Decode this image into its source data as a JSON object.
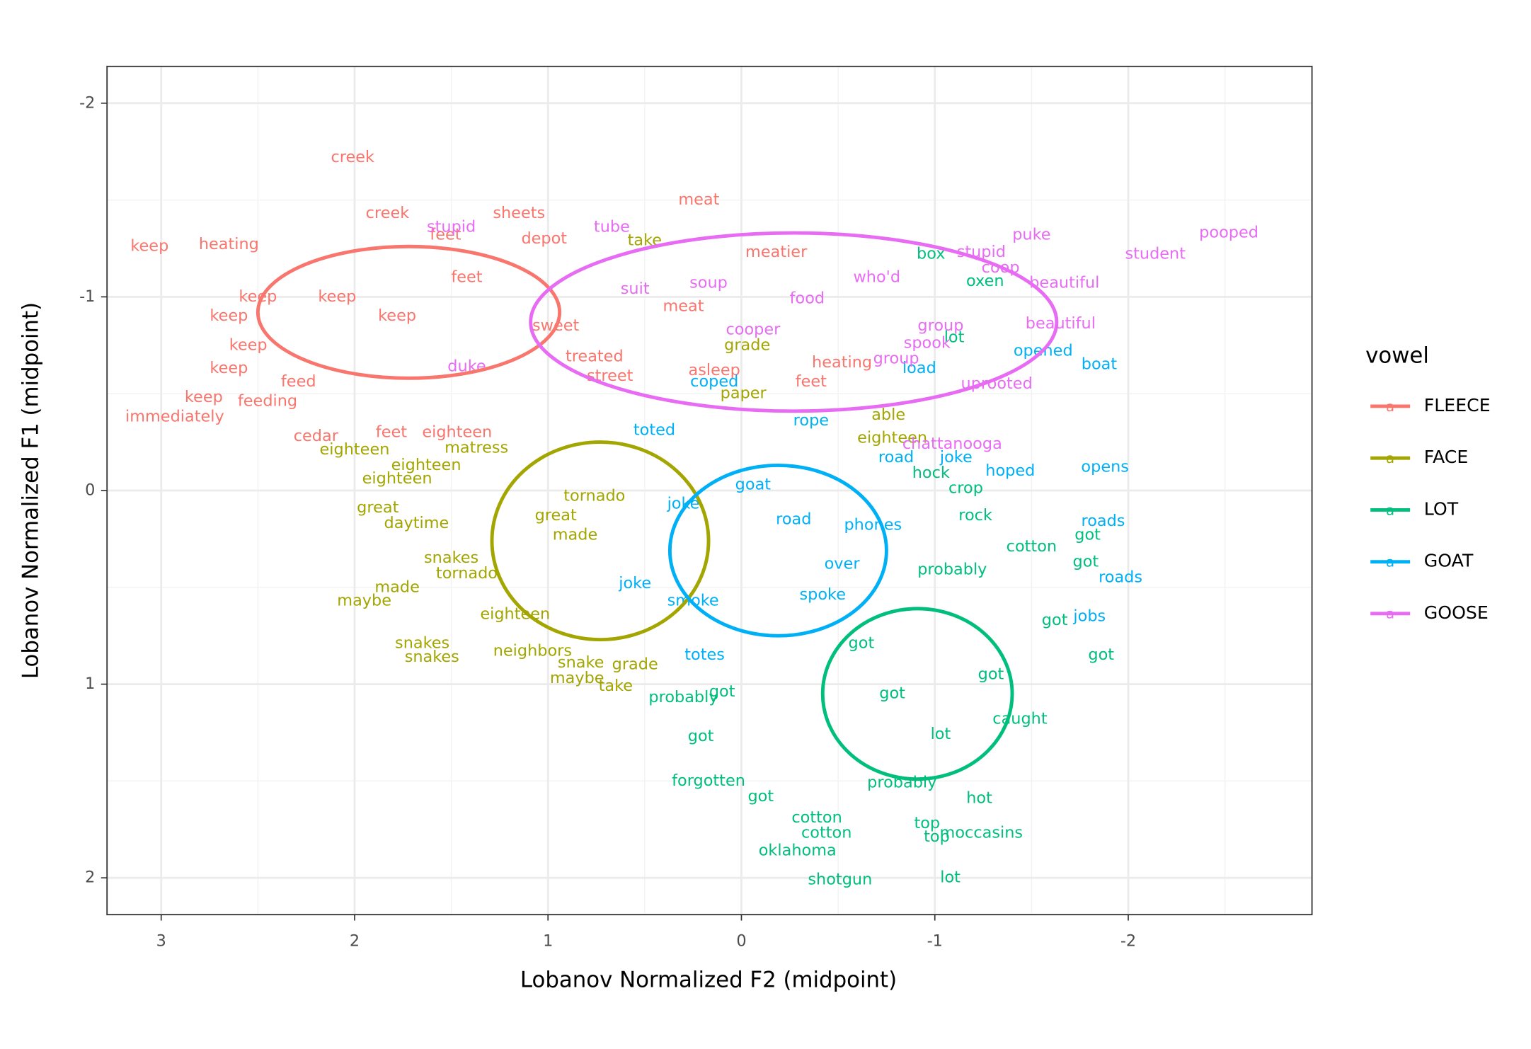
{
  "chart_data": {
    "type": "text-scatter",
    "x_label": "Lobanov Normalized F2 (midpoint)",
    "y_label": "Lobanov Normalized F1 (midpoint)",
    "legend_title": "vowel",
    "legend_glyph": "a",
    "legend_position": "right",
    "grid": true,
    "xlim": [
      3.28,
      -2.95
    ],
    "ylim": [
      2.19,
      -2.19
    ],
    "xticks": [
      3,
      2,
      1,
      0,
      -1,
      -2
    ],
    "yticks": [
      2,
      1,
      0,
      -1,
      -2
    ],
    "series": [
      {
        "name": "FLEECE",
        "color": "#F8766D",
        "ellipse": {
          "cx": 1.72,
          "cy": -0.92,
          "rx": 0.78,
          "ry": 0.34
        },
        "labels": [
          "creek",
          "creek",
          "sheets",
          "meat",
          "feet",
          "depot",
          "keep",
          "heating",
          "meatier",
          "immediately",
          "keep",
          "cedar",
          "feet",
          "eighteen",
          "feeding",
          "feet",
          "asleep",
          "heating",
          "treated",
          "keep",
          "keep",
          "keep",
          "keep",
          "meat",
          "keep",
          "feed",
          "street",
          "keep",
          "feet",
          "sweet"
        ],
        "x": [
          2.01,
          1.83,
          1.15,
          0.22,
          1.53,
          1.02,
          3.06,
          2.65,
          -0.18,
          2.93,
          2.78,
          2.2,
          1.81,
          1.47,
          2.45,
          -0.36,
          0.14,
          -0.52,
          0.76,
          2.65,
          2.5,
          2.65,
          2.55,
          0.3,
          2.09,
          2.29,
          0.68,
          1.78,
          1.42,
          0.96
        ],
        "values": [
          -1.72,
          -1.43,
          -1.43,
          -1.5,
          -1.32,
          -1.3,
          -1.26,
          -1.27,
          -1.23,
          -0.38,
          -0.48,
          -0.28,
          -0.3,
          -0.3,
          -0.46,
          -0.56,
          -0.62,
          -0.66,
          -0.69,
          -0.63,
          -1.0,
          -0.9,
          -0.75,
          -0.95,
          -1.0,
          -0.56,
          -0.59,
          -0.9,
          -1.1,
          -0.85
        ]
      },
      {
        "name": "FACE",
        "color": "#A3A500",
        "ellipse": {
          "cx": 0.73,
          "cy": 0.26,
          "rx": 0.56,
          "ry": 0.51
        },
        "labels": [
          "take",
          "grade",
          "able",
          "eighteen",
          "eighteen",
          "great",
          "daytime",
          "snakes",
          "tornado",
          "made",
          "maybe",
          "snakes",
          "snakes",
          "neighbors",
          "snake",
          "grade",
          "maybe",
          "take",
          "eighteen",
          "matress",
          "paper",
          "eighteen",
          "made",
          "tornado",
          "great",
          "eighteen"
        ],
        "x": [
          0.5,
          -0.03,
          -0.76,
          2.0,
          1.78,
          1.88,
          1.68,
          1.5,
          1.42,
          1.78,
          1.95,
          1.65,
          1.6,
          1.08,
          0.83,
          0.55,
          0.85,
          0.65,
          1.17,
          1.37,
          -0.01,
          -0.78,
          0.86,
          0.76,
          0.96,
          1.63
        ],
        "values": [
          -1.29,
          -0.75,
          -0.39,
          -0.21,
          -0.06,
          0.09,
          0.17,
          0.35,
          0.43,
          0.5,
          0.57,
          0.79,
          0.86,
          0.83,
          0.89,
          0.9,
          0.97,
          1.01,
          0.64,
          -0.22,
          -0.5,
          -0.27,
          0.23,
          0.03,
          0.13,
          -0.13
        ]
      },
      {
        "name": "LOT",
        "color": "#00BF7D",
        "ellipse": {
          "cx": -0.91,
          "cy": 1.05,
          "rx": 0.49,
          "ry": 0.44
        },
        "labels": [
          "box",
          "oxen",
          "lot",
          "hock",
          "crop",
          "rock",
          "cotton",
          "got",
          "got",
          "got",
          "got",
          "caught",
          "probably",
          "got",
          "got",
          "forgotten",
          "got",
          "cotton",
          "cotton",
          "top",
          "top",
          "moccasins",
          "hot",
          "shotgun",
          "lot",
          "oklahoma",
          "probably",
          "got",
          "lot",
          "got",
          "got",
          "probably"
        ],
        "x": [
          -0.98,
          -1.26,
          -1.1,
          -0.98,
          -1.16,
          -1.21,
          -1.5,
          -1.79,
          -1.78,
          -1.62,
          -1.86,
          -1.44,
          0.3,
          0.1,
          0.21,
          0.17,
          -0.1,
          -0.39,
          -0.44,
          -0.96,
          -1.01,
          -1.24,
          -1.23,
          -0.51,
          -1.08,
          -0.29,
          -1.09,
          -0.78,
          -1.03,
          -1.29,
          -0.62,
          -0.83
        ],
        "values": [
          -1.22,
          -1.08,
          -0.79,
          -0.09,
          -0.01,
          0.13,
          0.29,
          0.23,
          0.37,
          0.67,
          0.85,
          1.18,
          1.07,
          1.04,
          1.27,
          1.5,
          1.58,
          1.69,
          1.77,
          1.72,
          1.79,
          1.77,
          1.59,
          2.01,
          2.0,
          1.86,
          0.41,
          1.05,
          1.26,
          0.95,
          0.79,
          1.51
        ]
      },
      {
        "name": "GOAT",
        "color": "#00B0F6",
        "ellipse": {
          "cx": -0.19,
          "cy": 0.31,
          "rx": 0.56,
          "ry": 0.44
        },
        "labels": [
          "opened",
          "boat",
          "load",
          "road",
          "joke",
          "hoped",
          "opens",
          "roads",
          "roads",
          "rope",
          "jobs",
          "toted",
          "coped",
          "joke",
          "totes",
          "joke",
          "smoke",
          "over",
          "road",
          "goat",
          "phones",
          "spoke"
        ],
        "x": [
          -1.56,
          -1.85,
          -0.92,
          -0.8,
          -1.11,
          -1.39,
          -1.88,
          -1.87,
          -1.96,
          -0.36,
          -1.8,
          0.45,
          0.14,
          0.3,
          0.19,
          0.55,
          0.25,
          -0.52,
          -0.27,
          -0.06,
          -0.68,
          -0.42
        ],
        "values": [
          -0.72,
          -0.65,
          -0.63,
          -0.17,
          -0.17,
          -0.1,
          -0.12,
          0.16,
          0.45,
          -0.36,
          0.65,
          -0.31,
          -0.56,
          0.07,
          0.85,
          0.48,
          0.57,
          0.38,
          0.15,
          -0.03,
          0.18,
          0.54
        ]
      },
      {
        "name": "GOOSE",
        "color": "#E76BF3",
        "ellipse": {
          "cx": -0.27,
          "cy": -0.87,
          "rx": 1.36,
          "ry": 0.46
        },
        "labels": [
          "puke",
          "pooped",
          "student",
          "stupid",
          "beautiful",
          "beautiful",
          "coop",
          "who'd",
          "food",
          "group",
          "spook",
          "group",
          "uprooted",
          "chattanooga",
          "stupid",
          "tube",
          "soup",
          "suit",
          "cooper",
          "duke"
        ],
        "x": [
          -1.5,
          -2.52,
          -2.14,
          -1.24,
          -1.67,
          -1.65,
          -1.34,
          -0.7,
          -0.34,
          -1.03,
          -0.96,
          -0.8,
          -1.32,
          -1.09,
          1.5,
          0.67,
          0.17,
          0.55,
          -0.06,
          1.42
        ],
        "values": [
          -1.32,
          -1.33,
          -1.22,
          -1.23,
          -1.07,
          -0.86,
          -1.15,
          -1.1,
          -0.99,
          -0.85,
          -0.76,
          -0.68,
          -0.55,
          -0.24,
          -1.36,
          -1.36,
          -1.07,
          -1.04,
          -0.83,
          -0.64
        ]
      }
    ]
  }
}
